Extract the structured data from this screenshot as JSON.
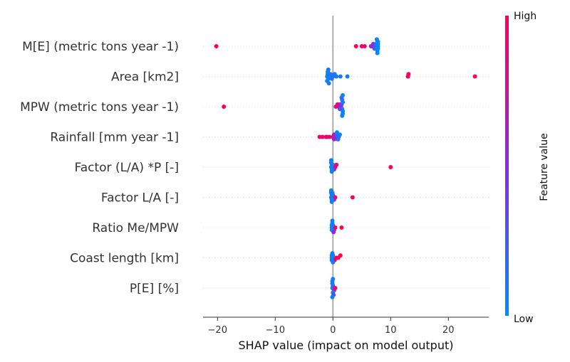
{
  "chart_data": {
    "type": "scatter",
    "subtype": "shap-beeswarm",
    "xlabel": "SHAP value (impact on model output)",
    "xlim": [
      -22.5,
      27
    ],
    "xticks": [
      -20,
      -10,
      0,
      10,
      20
    ],
    "xtick_labels": [
      "−20",
      "−10",
      "0",
      "10",
      "20"
    ],
    "grid": false,
    "colorbar": {
      "label": "Feature value",
      "high_label": "High",
      "low_label": "Low",
      "high_color": "#ff0052",
      "low_color": "#008bfb"
    },
    "features": [
      {
        "name": "M[E] (metric tons year -1)",
        "points": [
          [
            -20.2,
            1.0
          ],
          [
            4.0,
            1.0
          ],
          [
            5.0,
            0.95
          ],
          [
            5.5,
            0.9
          ],
          [
            6.6,
            0.7
          ],
          [
            6.8,
            0.55
          ],
          [
            7.0,
            0.45
          ],
          [
            7.2,
            0.3
          ],
          [
            7.4,
            0.2
          ],
          [
            7.5,
            0.12
          ],
          [
            7.6,
            0.08
          ],
          [
            7.7,
            0.05
          ],
          [
            7.8,
            0.03
          ],
          [
            7.8,
            0.02
          ],
          [
            7.7,
            0.04
          ],
          [
            7.6,
            0.06
          ],
          [
            7.8,
            0.01
          ],
          [
            7.7,
            0.03
          ],
          [
            7.8,
            0.02
          ]
        ]
      },
      {
        "name": "Area [km2]",
        "points": [
          [
            -1.0,
            0.05
          ],
          [
            -0.9,
            0.1
          ],
          [
            -0.8,
            0.08
          ],
          [
            -0.6,
            0.05
          ],
          [
            -0.4,
            0.1
          ],
          [
            -0.2,
            0.12
          ],
          [
            0.0,
            0.15
          ],
          [
            0.3,
            0.1
          ],
          [
            0.6,
            0.08
          ],
          [
            1.3,
            0.1
          ],
          [
            2.5,
            0.1
          ],
          [
            13.0,
            1.0
          ],
          [
            13.1,
            0.95
          ],
          [
            24.6,
            1.0
          ],
          [
            -0.9,
            0.07
          ],
          [
            -1.0,
            0.06
          ],
          [
            -0.8,
            0.09
          ],
          [
            -0.7,
            0.1
          ]
        ]
      },
      {
        "name": "MPW (metric tons year -1)",
        "points": [
          [
            -18.9,
            1.0
          ],
          [
            0.5,
            0.9
          ],
          [
            0.8,
            0.85
          ],
          [
            1.0,
            0.8
          ],
          [
            1.2,
            0.7
          ],
          [
            1.4,
            0.6
          ],
          [
            1.5,
            0.4
          ],
          [
            1.6,
            0.1
          ],
          [
            1.7,
            0.05
          ],
          [
            1.7,
            0.05
          ],
          [
            1.6,
            0.08
          ],
          [
            1.7,
            0.06
          ],
          [
            1.5,
            0.2
          ],
          [
            1.2,
            0.3
          ],
          [
            1.6,
            0.05
          ],
          [
            1.7,
            0.04
          ]
        ]
      },
      {
        "name": "Rainfall [mm year -1]",
        "points": [
          [
            -2.3,
            0.95
          ],
          [
            -1.8,
            0.9
          ],
          [
            -1.2,
            0.85
          ],
          [
            -0.6,
            0.9
          ],
          [
            0.0,
            0.8
          ],
          [
            0.2,
            0.7
          ],
          [
            0.4,
            0.5
          ],
          [
            0.6,
            0.3
          ],
          [
            0.8,
            0.2
          ],
          [
            1.0,
            0.1
          ],
          [
            1.2,
            0.05
          ],
          [
            0.7,
            0.05
          ],
          [
            -1.0,
            0.95
          ],
          [
            0.2,
            0.6
          ],
          [
            0.9,
            0.15
          ]
        ]
      },
      {
        "name": "Factor (L/A) *P [-]",
        "points": [
          [
            -0.3,
            0.05
          ],
          [
            -0.2,
            0.05
          ],
          [
            -0.1,
            0.06
          ],
          [
            0.0,
            0.1
          ],
          [
            0.2,
            0.4
          ],
          [
            0.4,
            0.8
          ],
          [
            0.6,
            0.9
          ],
          [
            10.0,
            1.0
          ],
          [
            -0.2,
            0.04
          ],
          [
            -0.3,
            0.05
          ],
          [
            -0.2,
            0.06
          ],
          [
            -0.3,
            0.05
          ]
        ]
      },
      {
        "name": "Factor L/A [-]",
        "points": [
          [
            -0.3,
            0.05
          ],
          [
            -0.2,
            0.05
          ],
          [
            -0.1,
            0.06
          ],
          [
            0.0,
            0.15
          ],
          [
            0.2,
            0.5
          ],
          [
            0.4,
            0.85
          ],
          [
            3.4,
            1.0
          ],
          [
            -0.2,
            0.04
          ],
          [
            -0.3,
            0.05
          ],
          [
            -0.2,
            0.06
          ],
          [
            -0.3,
            0.04
          ],
          [
            -0.1,
            0.1
          ]
        ]
      },
      {
        "name": "Ratio Me/MPW",
        "points": [
          [
            -0.2,
            0.05
          ],
          [
            -0.1,
            0.05
          ],
          [
            0.0,
            0.3
          ],
          [
            0.2,
            0.7
          ],
          [
            0.4,
            0.9
          ],
          [
            1.5,
            1.0
          ],
          [
            -0.2,
            0.06
          ],
          [
            -0.1,
            0.05
          ],
          [
            -0.2,
            0.04
          ],
          [
            0.1,
            0.5
          ],
          [
            -0.1,
            0.06
          ]
        ]
      },
      {
        "name": "Coast length [km]",
        "points": [
          [
            -0.2,
            0.05
          ],
          [
            -0.1,
            0.05
          ],
          [
            0.0,
            0.2
          ],
          [
            0.3,
            0.9
          ],
          [
            0.6,
            0.95
          ],
          [
            0.9,
            1.0
          ],
          [
            1.3,
            1.0
          ],
          [
            -0.2,
            0.04
          ],
          [
            -0.1,
            0.06
          ],
          [
            -0.2,
            0.05
          ],
          [
            0.0,
            0.1
          ]
        ]
      },
      {
        "name": "P[E] [%]",
        "points": [
          [
            -0.1,
            0.05
          ],
          [
            0.0,
            0.3
          ],
          [
            0.2,
            0.7
          ],
          [
            0.4,
            0.9
          ],
          [
            -0.1,
            0.06
          ],
          [
            0.0,
            0.05
          ],
          [
            -0.1,
            0.04
          ],
          [
            0.1,
            0.4
          ],
          [
            0.0,
            0.08
          ],
          [
            -0.1,
            0.05
          ]
        ]
      }
    ]
  }
}
